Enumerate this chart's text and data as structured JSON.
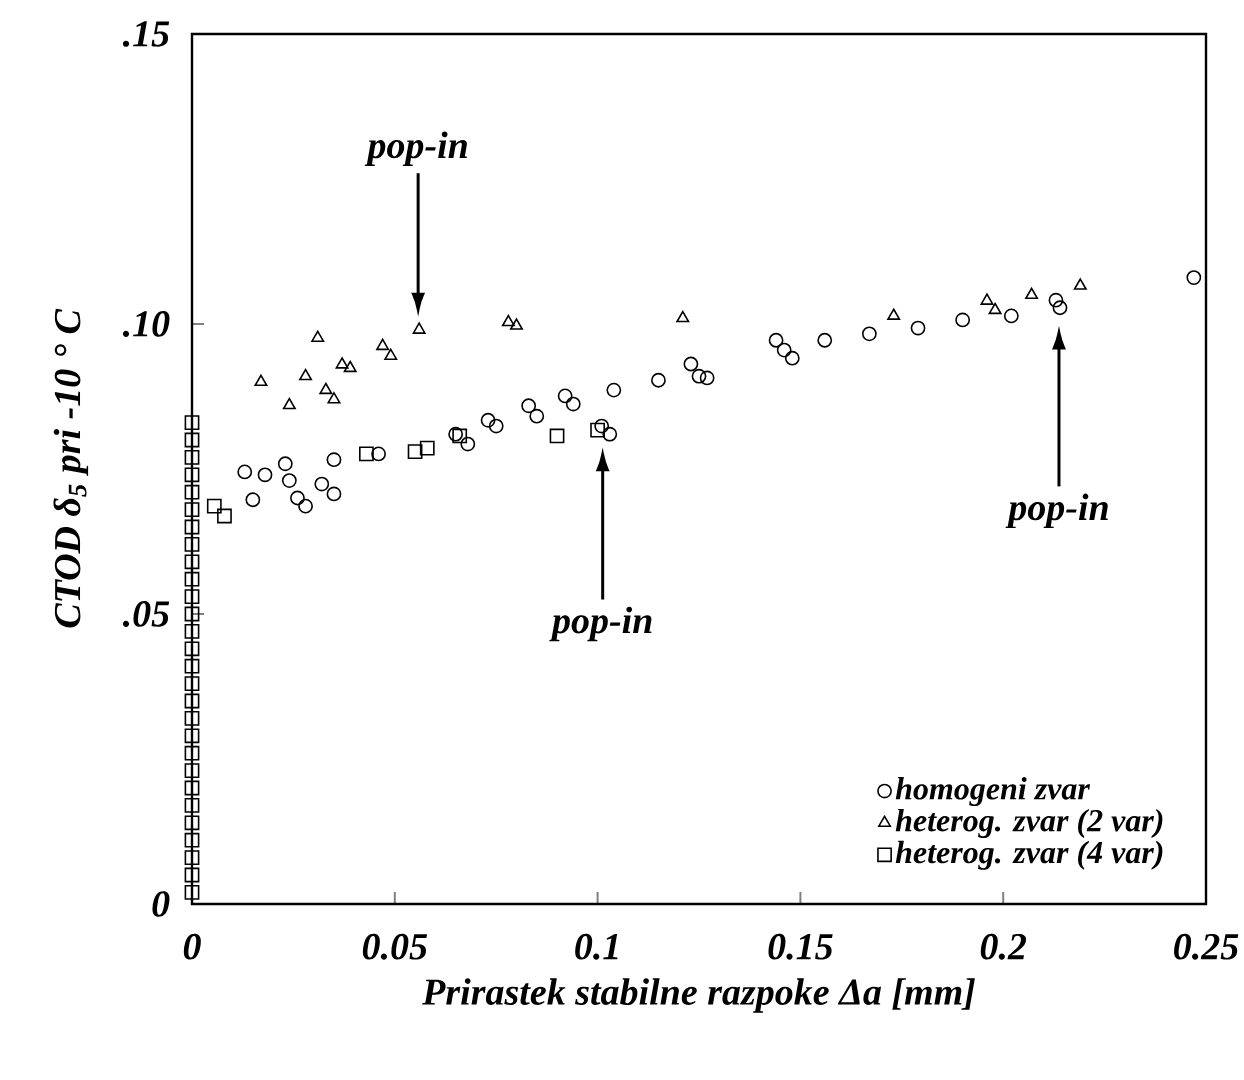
{
  "chart_data": {
    "type": "scatter",
    "xlabel": "Prirastek stabilne razpoke Δa [mm]",
    "ylabel": "CTOD δ$_{5}$ pri -10 ° C",
    "xlim": [
      0,
      0.25
    ],
    "ylim": [
      0,
      0.15
    ],
    "xticks": [
      0,
      0.05,
      0.1,
      0.15,
      0.2,
      0.25
    ],
    "yticks": [
      {
        "value": 0,
        "label": "0"
      },
      {
        "value": 0.05,
        "label": ".05"
      },
      {
        "value": 0.1,
        "label": ".10"
      },
      {
        "value": 0.15,
        "label": ".15"
      }
    ],
    "grid": false,
    "legend": "bottom right",
    "series": [
      {
        "name": "homogeni zvar",
        "color": "#000000",
        "marker": "circle",
        "x": [
          0.013,
          0.015,
          0.018,
          0.023,
          0.024,
          0.026,
          0.028,
          0.032,
          0.035,
          0.035,
          0.046,
          0.065,
          0.068,
          0.073,
          0.075,
          0.083,
          0.085,
          0.092,
          0.094,
          0.101,
          0.103,
          0.104,
          0.115,
          0.123,
          0.125,
          0.127,
          0.144,
          0.146,
          0.148,
          0.156,
          0.167,
          0.179,
          0.19,
          0.202,
          0.213,
          0.214,
          0.247
        ],
        "values": [
          0.0745,
          0.0697,
          0.074,
          0.0759,
          0.073,
          0.07,
          0.0686,
          0.0724,
          0.0707,
          0.0766,
          0.0776,
          0.081,
          0.0793,
          0.0834,
          0.0824,
          0.0859,
          0.0841,
          0.0876,
          0.0862,
          0.0824,
          0.081,
          0.0886,
          0.0903,
          0.0931,
          0.091,
          0.0907,
          0.0972,
          0.0955,
          0.0941,
          0.0972,
          0.0983,
          0.0993,
          0.1007,
          0.1014,
          0.1041,
          0.1028,
          0.108
        ]
      },
      {
        "name": "heterog. zvar (2 var)",
        "color": "#000000",
        "marker": "triangle",
        "x": [
          0.017,
          0.024,
          0.028,
          0.031,
          0.033,
          0.035,
          0.037,
          0.039,
          0.047,
          0.049,
          0.056,
          0.078,
          0.08,
          0.121,
          0.173,
          0.196,
          0.198,
          0.207,
          0.219
        ],
        "values": [
          0.09,
          0.086,
          0.091,
          0.0976,
          0.0886,
          0.087,
          0.093,
          0.0924,
          0.0962,
          0.0945,
          0.099,
          0.1003,
          0.0997,
          0.101,
          0.1014,
          0.104,
          0.1024,
          0.105,
          0.1066
        ]
      },
      {
        "name": "heterog. zvar (4 var)",
        "color": "#000000",
        "marker": "square",
        "x": [
          0.0055,
          0.008,
          0.043,
          0.055,
          0.058,
          0.066,
          0.09,
          0.1,
          0,
          0,
          0,
          0,
          0,
          0,
          0,
          0,
          0,
          0,
          0,
          0,
          0,
          0,
          0,
          0,
          0,
          0,
          0,
          0,
          0,
          0,
          0,
          0,
          0,
          0,
          0,
          0
        ],
        "values": [
          0.0686,
          0.0669,
          0.0776,
          0.078,
          0.0786,
          0.0807,
          0.0807,
          0.0817,
          0.002,
          0.005,
          0.008,
          0.011,
          0.014,
          0.017,
          0.02,
          0.023,
          0.026,
          0.029,
          0.032,
          0.035,
          0.038,
          0.041,
          0.044,
          0.047,
          0.05,
          0.053,
          0.056,
          0.059,
          0.062,
          0.065,
          0.068,
          0.071,
          0.074,
          0.077,
          0.08,
          0.083
        ]
      }
    ],
    "annotations": [
      "pop-in",
      "pop-in",
      "pop-in"
    ]
  }
}
